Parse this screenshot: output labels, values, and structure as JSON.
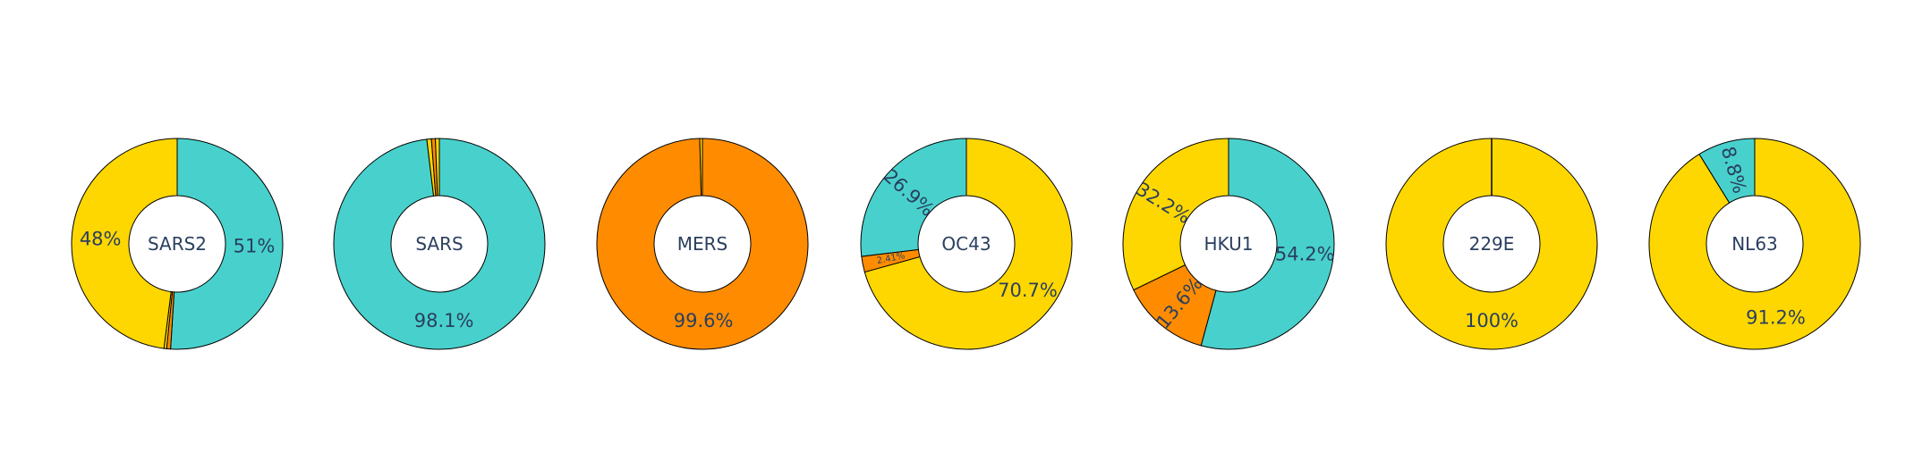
{
  "colors": {
    "teal": "#48D1CC",
    "yellow": "#FFD700",
    "orange": "#FF8C00",
    "outline": "#000000",
    "text": "#2a3f5f",
    "background": "#ffffff"
  },
  "chart_data": [
    {
      "type": "pie",
      "hole": true,
      "center_label": "SARS2",
      "slices": [
        {
          "value": 51.0,
          "color": "teal",
          "label": "51%"
        },
        {
          "value": 0.6,
          "color": "orange",
          "label": ""
        },
        {
          "value": 0.4,
          "color": "yellow",
          "label": ""
        },
        {
          "value": 48.0,
          "color": "yellow",
          "label": "48%"
        }
      ]
    },
    {
      "type": "pie",
      "hole": true,
      "center_label": "SARS",
      "slices": [
        {
          "value": 98.1,
          "color": "teal",
          "label": "98.1%"
        },
        {
          "value": 0.7,
          "color": "yellow",
          "label": ""
        },
        {
          "value": 0.6,
          "color": "orange",
          "label": ""
        },
        {
          "value": 0.6,
          "color": "yellow",
          "label": ""
        }
      ]
    },
    {
      "type": "pie",
      "hole": true,
      "center_label": "MERS",
      "slices": [
        {
          "value": 99.6,
          "color": "orange",
          "label": "99.6%"
        },
        {
          "value": 0.4,
          "color": "yellow",
          "label": ""
        }
      ]
    },
    {
      "type": "pie",
      "hole": true,
      "center_label": "OC43",
      "slices": [
        {
          "value": 70.7,
          "color": "yellow",
          "label": "70.7%"
        },
        {
          "value": 2.41,
          "color": "orange",
          "label": "2.41%"
        },
        {
          "value": 26.9,
          "color": "teal",
          "label": "26.9%"
        }
      ]
    },
    {
      "type": "pie",
      "hole": true,
      "center_label": "HKU1",
      "slices": [
        {
          "value": 54.2,
          "color": "teal",
          "label": "54.2%"
        },
        {
          "value": 13.6,
          "color": "orange",
          "label": "13.6%"
        },
        {
          "value": 32.2,
          "color": "yellow",
          "label": "32.2%"
        }
      ]
    },
    {
      "type": "pie",
      "hole": true,
      "center_label": "229E",
      "slices": [
        {
          "value": 100,
          "color": "yellow",
          "label": "100%"
        }
      ]
    },
    {
      "type": "pie",
      "hole": true,
      "center_label": "NL63",
      "slices": [
        {
          "value": 91.2,
          "color": "yellow",
          "label": "91.2%"
        },
        {
          "value": 8.8,
          "color": "teal",
          "label": "8.8%"
        }
      ]
    }
  ]
}
